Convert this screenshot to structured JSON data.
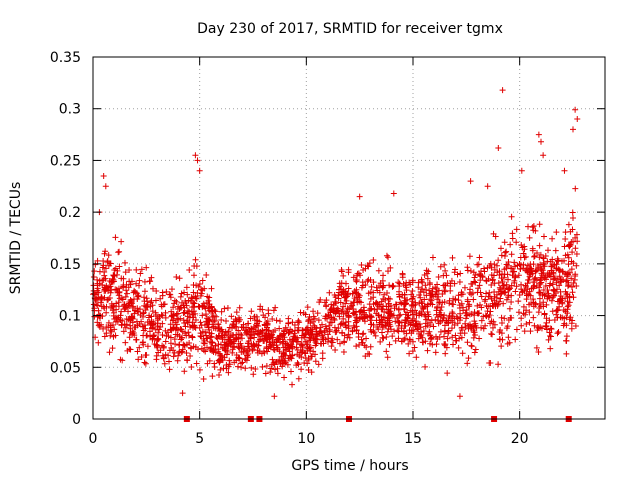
{
  "chart_data": {
    "type": "scatter",
    "title": "Day 230 of 2017, SRMTID for receiver tgmx",
    "xlabel": "GPS time / hours",
    "ylabel": "SRMTID / TECUs",
    "xlim": [
      0,
      24
    ],
    "ylim": [
      0,
      0.35
    ],
    "grid": true,
    "legend": "none",
    "marker": "plus",
    "color": "#e00000",
    "x_ticks": [
      0,
      5,
      10,
      15,
      20
    ],
    "x_tick_labels": [
      "0",
      "5",
      "10",
      "15",
      "20"
    ],
    "y_ticks": [
      0,
      0.05,
      0.1,
      0.15,
      0.2,
      0.25,
      0.3,
      0.35
    ],
    "y_tick_labels": [
      "0",
      "0.05",
      "0.1",
      "0.15",
      "0.2",
      "0.25",
      "0.3",
      "0.35"
    ],
    "zero_markers_x": [
      4.4,
      7.4,
      7.8,
      12.0,
      18.8,
      22.3
    ],
    "envelope": [
      {
        "x": 0.0,
        "mean": 0.12,
        "spread": 0.03
      },
      {
        "x": 1.0,
        "mean": 0.115,
        "spread": 0.035
      },
      {
        "x": 2.0,
        "mean": 0.105,
        "spread": 0.032
      },
      {
        "x": 3.0,
        "mean": 0.09,
        "spread": 0.03
      },
      {
        "x": 4.0,
        "mean": 0.09,
        "spread": 0.028
      },
      {
        "x": 5.0,
        "mean": 0.1,
        "spread": 0.04
      },
      {
        "x": 6.0,
        "mean": 0.072,
        "spread": 0.022
      },
      {
        "x": 7.0,
        "mean": 0.075,
        "spread": 0.022
      },
      {
        "x": 8.0,
        "mean": 0.08,
        "spread": 0.022
      },
      {
        "x": 9.0,
        "mean": 0.07,
        "spread": 0.022
      },
      {
        "x": 10.0,
        "mean": 0.075,
        "spread": 0.022
      },
      {
        "x": 11.0,
        "mean": 0.09,
        "spread": 0.025
      },
      {
        "x": 12.0,
        "mean": 0.11,
        "spread": 0.03
      },
      {
        "x": 13.0,
        "mean": 0.105,
        "spread": 0.03
      },
      {
        "x": 14.0,
        "mean": 0.11,
        "spread": 0.03
      },
      {
        "x": 15.0,
        "mean": 0.1,
        "spread": 0.03
      },
      {
        "x": 16.0,
        "mean": 0.105,
        "spread": 0.03
      },
      {
        "x": 17.0,
        "mean": 0.1,
        "spread": 0.032
      },
      {
        "x": 18.0,
        "mean": 0.11,
        "spread": 0.035
      },
      {
        "x": 19.0,
        "mean": 0.12,
        "spread": 0.04
      },
      {
        "x": 20.0,
        "mean": 0.14,
        "spread": 0.04
      },
      {
        "x": 21.0,
        "mean": 0.13,
        "spread": 0.04
      },
      {
        "x": 22.0,
        "mean": 0.12,
        "spread": 0.04
      },
      {
        "x": 22.7,
        "mean": 0.15,
        "spread": 0.05
      }
    ],
    "notable_points": [
      {
        "x": 0.3,
        "y": 0.2
      },
      {
        "x": 0.5,
        "y": 0.235
      },
      {
        "x": 0.6,
        "y": 0.225
      },
      {
        "x": 4.8,
        "y": 0.255
      },
      {
        "x": 4.9,
        "y": 0.25
      },
      {
        "x": 5.0,
        "y": 0.24
      },
      {
        "x": 12.5,
        "y": 0.215
      },
      {
        "x": 14.1,
        "y": 0.218
      },
      {
        "x": 17.7,
        "y": 0.23
      },
      {
        "x": 18.5,
        "y": 0.225
      },
      {
        "x": 19.0,
        "y": 0.262
      },
      {
        "x": 19.2,
        "y": 0.318
      },
      {
        "x": 20.1,
        "y": 0.24
      },
      {
        "x": 20.9,
        "y": 0.275
      },
      {
        "x": 21.0,
        "y": 0.268
      },
      {
        "x": 21.1,
        "y": 0.255
      },
      {
        "x": 22.1,
        "y": 0.24
      },
      {
        "x": 22.5,
        "y": 0.28
      },
      {
        "x": 22.6,
        "y": 0.299
      },
      {
        "x": 22.7,
        "y": 0.29
      },
      {
        "x": 8.5,
        "y": 0.022
      },
      {
        "x": 17.2,
        "y": 0.022
      },
      {
        "x": 4.2,
        "y": 0.025
      }
    ]
  }
}
